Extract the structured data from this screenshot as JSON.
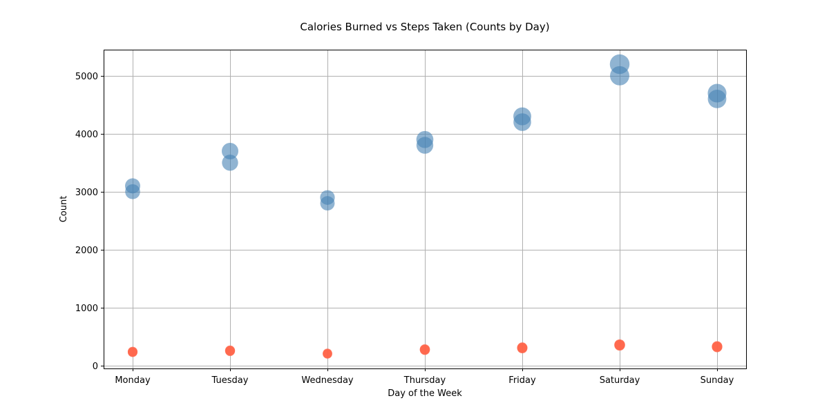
{
  "chart_data": {
    "type": "scatter",
    "title": "Calories Burned vs Steps Taken (Counts by Day)",
    "xlabel": "Day of the Week",
    "ylabel": "Count",
    "categories": [
      "Monday",
      "Tuesday",
      "Wednesday",
      "Thursday",
      "Friday",
      "Saturday",
      "Sunday"
    ],
    "ylim": [
      -50,
      5450
    ],
    "yticks": [
      0,
      1000,
      2000,
      3000,
      4000,
      5000
    ],
    "grid": true,
    "series": [
      {
        "color": "#4682b4",
        "opacity": 0.6,
        "points": [
          {
            "x": "Monday",
            "y": 3000
          },
          {
            "x": "Monday",
            "y": 3100
          },
          {
            "x": "Tuesday",
            "y": 3500
          },
          {
            "x": "Tuesday",
            "y": 3700
          },
          {
            "x": "Wednesday",
            "y": 2800
          },
          {
            "x": "Wednesday",
            "y": 2900
          },
          {
            "x": "Thursday",
            "y": 3800
          },
          {
            "x": "Thursday",
            "y": 3900
          },
          {
            "x": "Friday",
            "y": 4200
          },
          {
            "x": "Friday",
            "y": 4300
          },
          {
            "x": "Saturday",
            "y": 5000
          },
          {
            "x": "Saturday",
            "y": 5200
          },
          {
            "x": "Sunday",
            "y": 4600
          },
          {
            "x": "Sunday",
            "y": 4700
          }
        ]
      },
      {
        "color": "#ff6347",
        "opacity": 0.8,
        "points": [
          {
            "x": "Monday",
            "y": 230
          },
          {
            "x": "Monday",
            "y": 240
          },
          {
            "x": "Tuesday",
            "y": 250
          },
          {
            "x": "Tuesday",
            "y": 260
          },
          {
            "x": "Wednesday",
            "y": 200
          },
          {
            "x": "Wednesday",
            "y": 210
          },
          {
            "x": "Thursday",
            "y": 270
          },
          {
            "x": "Thursday",
            "y": 280
          },
          {
            "x": "Friday",
            "y": 300
          },
          {
            "x": "Friday",
            "y": 310
          },
          {
            "x": "Saturday",
            "y": 350
          },
          {
            "x": "Saturday",
            "y": 360
          },
          {
            "x": "Sunday",
            "y": 320
          },
          {
            "x": "Sunday",
            "y": 330
          }
        ]
      }
    ]
  }
}
